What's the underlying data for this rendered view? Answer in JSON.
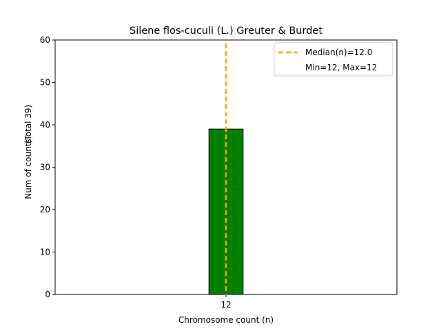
{
  "chart_data": {
    "type": "bar",
    "title": "Silene flos-cuculi (L.) Greuter & Burdet",
    "xlabel": "Chromosome count (n)",
    "ylabel": "Num of counts",
    "ylabel_total": "(Total 39)",
    "categories": [
      "12"
    ],
    "x": [
      12
    ],
    "values": [
      39
    ],
    "xlim": [
      8,
      16
    ],
    "ylim": [
      0,
      60
    ],
    "yticks": [
      0,
      10,
      20,
      30,
      40,
      50,
      60
    ],
    "xticks": [
      12
    ],
    "grid": false,
    "legend_position": "top-right",
    "median_line": {
      "value": 12.0,
      "label": "Median(n)=12.0",
      "color": "#ffa500",
      "style": "dashed"
    },
    "legend_extra": "Min=12, Max=12",
    "bar_color": "#008000",
    "bar_edge_color": "#000000"
  }
}
